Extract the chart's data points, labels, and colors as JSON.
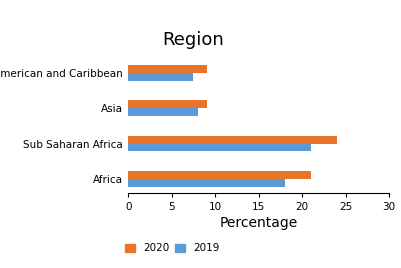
{
  "categories": [
    "Africa",
    "Sub Saharan Africa",
    "Asia",
    "Latin American and Caribbean"
  ],
  "values_2020": [
    21,
    24,
    9,
    9
  ],
  "values_2019": [
    18,
    21,
    8,
    7.5
  ],
  "color_2020": "#E8742A",
  "color_2019": "#5B9BD5",
  "title": "Region",
  "xlabel": "Percentage",
  "xlim": [
    0,
    30
  ],
  "xticks": [
    0,
    5,
    10,
    15,
    20,
    25,
    30
  ],
  "legend_labels": [
    "2020",
    "2019"
  ],
  "bar_height": 0.22,
  "title_fontsize": 13,
  "tick_fontsize": 7.5,
  "legend_fontsize": 7.5,
  "xlabel_fontsize": 10
}
